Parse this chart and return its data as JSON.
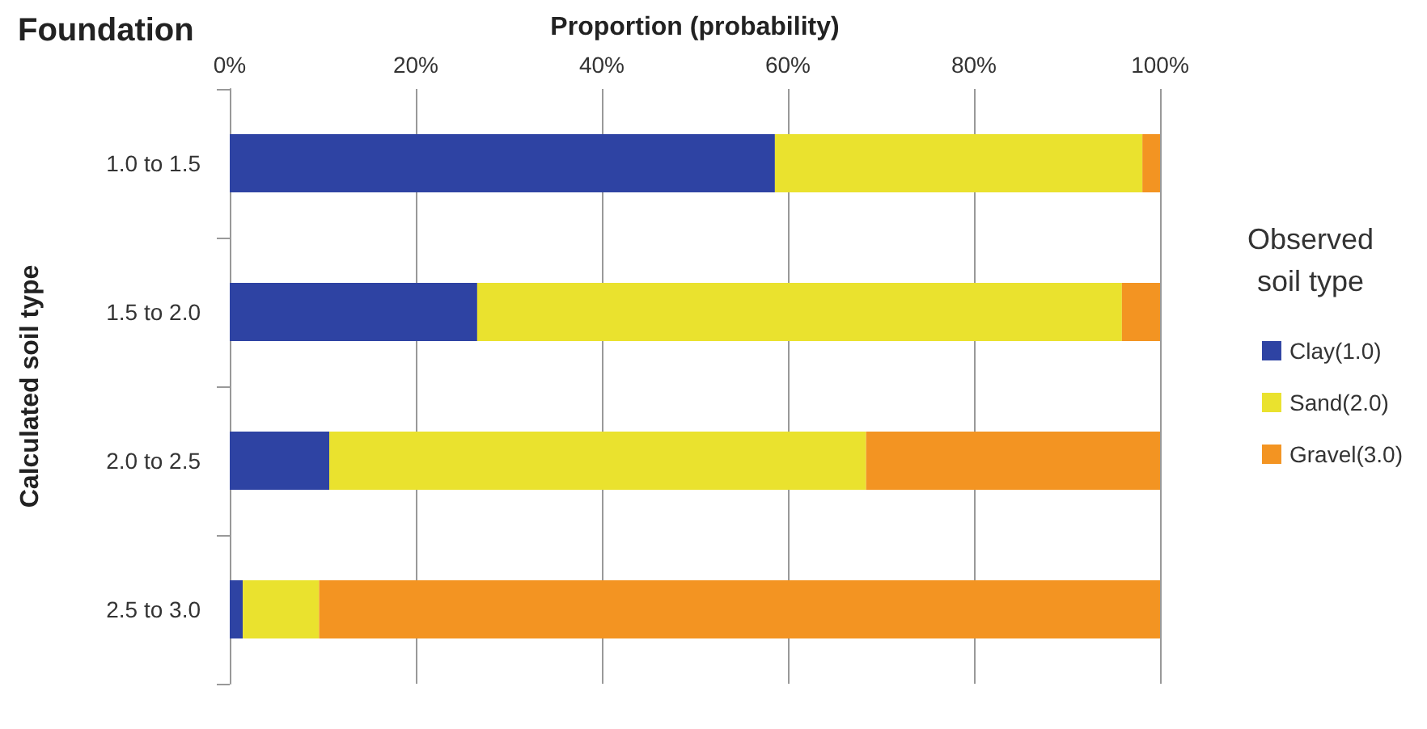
{
  "chart_data": {
    "type": "bar",
    "orientation": "horizontal",
    "stacked": true,
    "title": "Foundation",
    "xlabel": "Proportion (probability)",
    "ylabel": "Calculated soil type",
    "legend_title": "Observed soil type",
    "legend": "right",
    "grid": "x",
    "categories": [
      "1.0 to 1.5",
      "1.5 to 2.0",
      "2.0 to 2.5",
      "2.5 to 3.0"
    ],
    "series": [
      {
        "name": "Clay(1.0)",
        "color": "#2e43a3",
        "values": [
          58.6,
          26.6,
          10.7,
          1.4
        ]
      },
      {
        "name": "Sand(2.0)",
        "color": "#eae22e",
        "values": [
          39.5,
          69.3,
          57.7,
          8.2
        ]
      },
      {
        "name": "Gravel(3.0)",
        "color": "#f39422",
        "values": [
          1.9,
          4.1,
          31.6,
          90.4
        ]
      }
    ],
    "xlim": [
      0,
      100
    ],
    "xticks": [
      {
        "value": 0,
        "label": "0%"
      },
      {
        "value": 20,
        "label": "20%"
      },
      {
        "value": 40,
        "label": "40%"
      },
      {
        "value": 60,
        "label": "60%"
      },
      {
        "value": 80,
        "label": "80%"
      },
      {
        "value": 100,
        "label": "100%"
      }
    ]
  }
}
